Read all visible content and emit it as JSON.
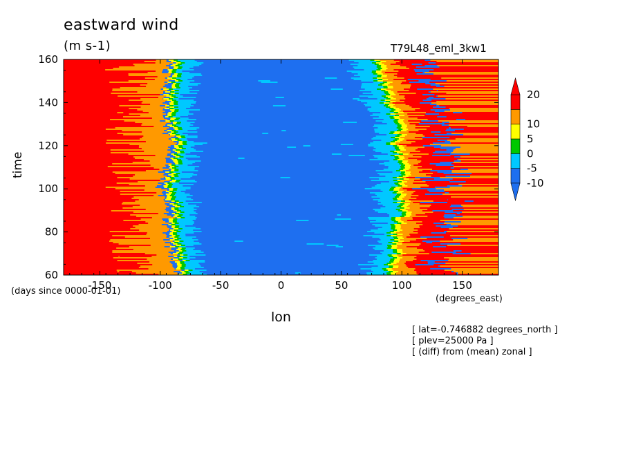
{
  "title": "eastward wind",
  "units": "(m s-1)",
  "experiment": "T79L48_eml_3kw1",
  "info_lines": [
    "[ lat=-0.746882 degrees_north ]",
    "[ plev=25000 Pa ]",
    "[ (diff) from (mean) zonal ]"
  ],
  "chart_data": {
    "type": "heatmap",
    "title": "eastward wind",
    "units": "(m s-1)",
    "xlabel": "lon",
    "x_units": "(degrees_east)",
    "ylabel": "time",
    "y_units": "(days since 0000-01-01)",
    "xlim": [
      -180,
      180
    ],
    "ylim": [
      60,
      160
    ],
    "x_ticks": [
      -150,
      -100,
      -50,
      0,
      50,
      100,
      150
    ],
    "y_ticks": [
      60,
      80,
      100,
      120,
      140,
      160
    ],
    "x_tick_labels": [
      "-150",
      "-100",
      "-50",
      "0",
      "50",
      "100",
      "150"
    ],
    "y_tick_labels": [
      "60",
      "80",
      "100",
      "120",
      "140",
      "160"
    ],
    "colorbar": {
      "levels": [
        -10,
        -5,
        0,
        5,
        10,
        20
      ],
      "level_labels": [
        "-10",
        "-5",
        "0",
        "5",
        "10",
        "20"
      ],
      "colors": [
        "#1e6ff0",
        "#00c8ff",
        "#00c800",
        "#ffff00",
        "#ff9900",
        "#ff0000"
      ],
      "extend": "both"
    },
    "west_boundary_lon": [
      [
        60,
        -75
      ],
      [
        70,
        -80
      ],
      [
        80,
        -85
      ],
      [
        90,
        -82
      ],
      [
        100,
        -88
      ],
      [
        110,
        -85
      ],
      [
        120,
        -80
      ],
      [
        130,
        -86
      ],
      [
        140,
        -88
      ],
      [
        150,
        -85
      ],
      [
        160,
        -82
      ]
    ],
    "east_boundary_lon": [
      [
        60,
        85
      ],
      [
        70,
        92
      ],
      [
        80,
        90
      ],
      [
        90,
        98
      ],
      [
        100,
        92
      ],
      [
        110,
        100
      ],
      [
        120,
        90
      ],
      [
        130,
        95
      ],
      [
        140,
        85
      ],
      [
        150,
        80
      ],
      [
        160,
        75
      ]
    ]
  }
}
